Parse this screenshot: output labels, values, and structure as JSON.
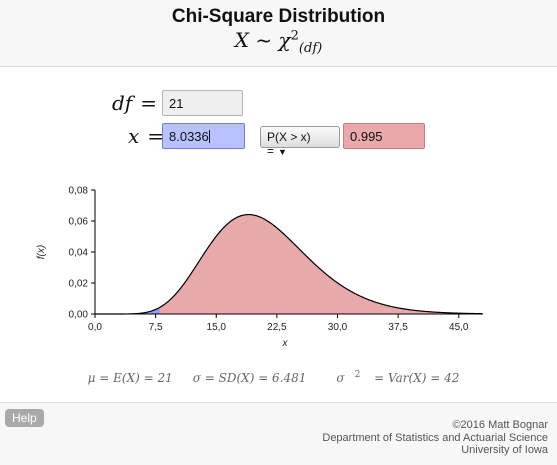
{
  "header": {
    "title": "Chi-Square Distribution",
    "formula_lhs": "X ~ χ",
    "formula_sup": "2",
    "formula_sub": "(df)"
  },
  "inputs": {
    "df_label": "df",
    "df_value": "21",
    "x_label": "x",
    "x_value": "8.0336",
    "operator_option": "P(X > x) =",
    "probability_value": "0.995"
  },
  "chart_data": {
    "type": "area",
    "distribution": "chi-square",
    "df": 21,
    "xlabel": "x",
    "ylabel": "f(x)",
    "xlim": [
      0,
      48
    ],
    "ylim": [
      0,
      0.08
    ],
    "x_ticks": [
      "0,0",
      "7,5",
      "15,0",
      "22,5",
      "30,0",
      "37,5",
      "45,0"
    ],
    "x_tick_values": [
      0,
      7.5,
      15,
      22.5,
      30,
      37.5,
      45
    ],
    "y_ticks": [
      "0,00",
      "0,02",
      "0,04",
      "0,06",
      "0,08"
    ],
    "y_tick_values": [
      0,
      0.02,
      0.04,
      0.06,
      0.08
    ],
    "shaded_from_x": 8.0336,
    "colors": {
      "shaded_right": "#e8a9ab",
      "shaded_left": "#8f9df0",
      "curve": "#000000"
    }
  },
  "stats": {
    "mean": "μ = E(X) = 21",
    "sd": "σ = SD(X) = 6.481",
    "var_lhs": "σ",
    "var_sup": "2",
    "var_rhs": " = Var(X) = 42"
  },
  "footer": {
    "help_label": "Help",
    "copyright": "©2016 Matt Bognar",
    "department": "Department of Statistics and Actuarial Science",
    "university": "University of Iowa"
  }
}
